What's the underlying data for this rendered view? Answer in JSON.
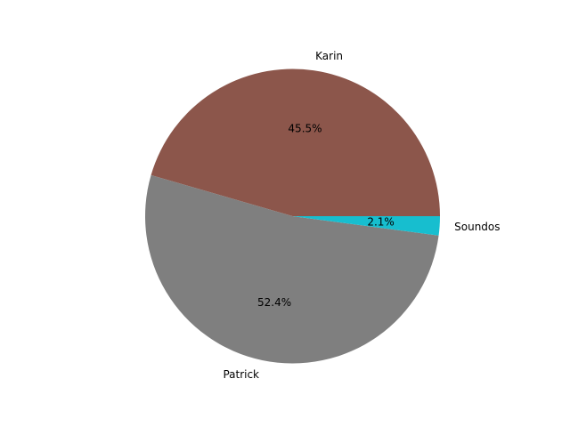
{
  "chart_data": {
    "type": "pie",
    "title": "",
    "start_angle_deg": 0,
    "direction": "counterclockwise",
    "legend": "none",
    "slices": [
      {
        "label": "Karin",
        "percent_label": "45.5%",
        "value": 45.5,
        "color": "#8c564b"
      },
      {
        "label": "Patrick",
        "percent_label": "52.4%",
        "value": 52.4,
        "color": "#7f7f7f"
      },
      {
        "label": "Soundos",
        "percent_label": "2.1%",
        "value": 2.1,
        "color": "#17becf"
      }
    ]
  }
}
